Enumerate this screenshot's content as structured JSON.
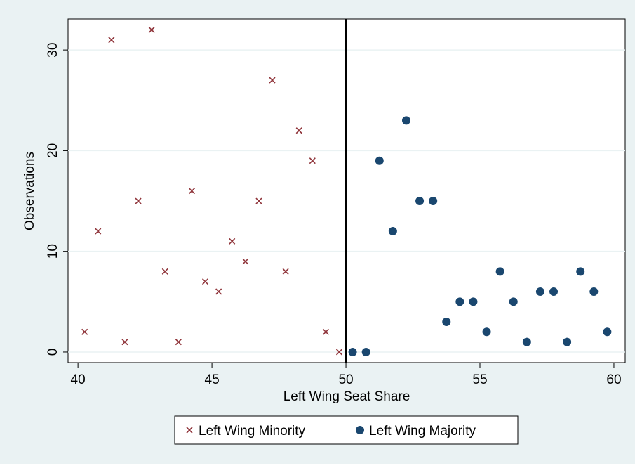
{
  "chart_data": {
    "type": "scatter",
    "x_label": "Left Wing Seat Share",
    "y_label": "Observations",
    "xlim": [
      39.63,
      60.42
    ],
    "ylim": [
      -1.05,
      33.08
    ],
    "xticks": [
      40,
      45,
      50,
      55,
      60
    ],
    "yticks": [
      0,
      10,
      20,
      30
    ],
    "grid": true,
    "xline": 50,
    "legend": "bottom",
    "series": [
      {
        "name": "Left Wing Minority",
        "color": "#90353b",
        "marker": "x",
        "x": [
          40.25,
          40.75,
          41.25,
          41.75,
          42.25,
          42.75,
          43.25,
          43.75,
          44.25,
          44.75,
          45.25,
          45.75,
          46.25,
          46.75,
          47.25,
          47.75,
          48.25,
          48.75,
          49.25,
          49.75
        ],
        "values": [
          2,
          12,
          31,
          1,
          15,
          32,
          8,
          1,
          16,
          7,
          6,
          11,
          9,
          15,
          27,
          8,
          22,
          19,
          2,
          0
        ]
      },
      {
        "name": "Left Wing Majority",
        "color": "#1a476f",
        "marker": "circle",
        "x": [
          50.25,
          50.75,
          51.25,
          51.75,
          52.25,
          52.75,
          53.25,
          53.75,
          54.25,
          54.75,
          55.25,
          55.75,
          56.25,
          56.75,
          57.25,
          57.75,
          58.25,
          58.75,
          59.25,
          59.75
        ],
        "values": [
          0,
          0,
          19,
          12,
          23,
          15,
          15,
          3,
          5,
          5,
          2,
          8,
          5,
          1,
          6,
          6,
          1,
          8,
          6,
          2
        ]
      }
    ]
  }
}
